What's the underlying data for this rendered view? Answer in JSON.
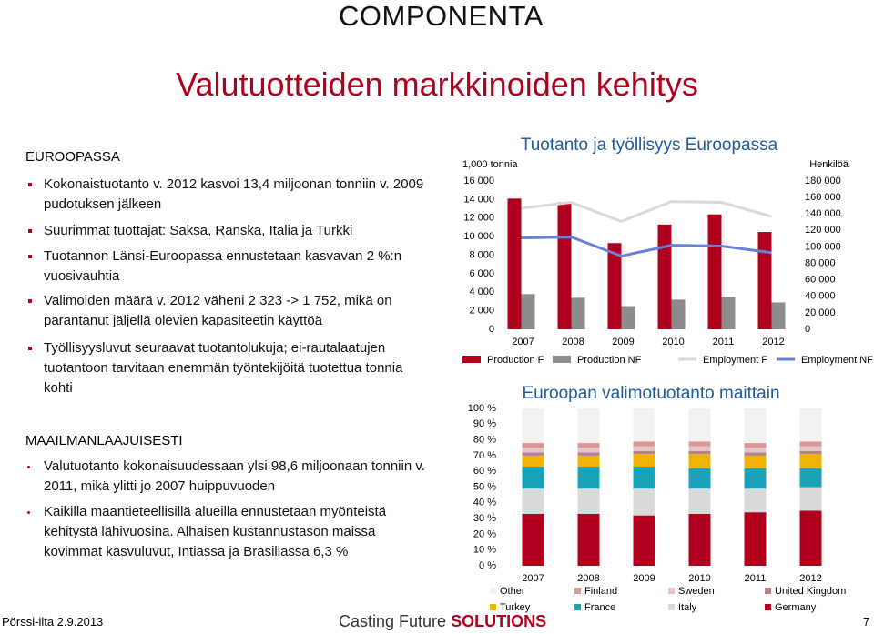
{
  "header": {
    "logo": "COMPONENTA",
    "title": "Valutuotteiden markkinoiden kehitys"
  },
  "sections": [
    {
      "heading": "EUROOPASSA",
      "bullets": [
        "Kokonaistuotanto  v. 2012 kasvoi 13,4 miljoonan tonniin v. 2009 pudotuksen jälkeen",
        "Suurimmat tuottajat: Saksa, Ranska, Italia ja Turkki",
        "Tuotannon Länsi-Euroopassa ennustetaan kasvavan 2 %:n vuosivauhtia",
        "Valimoiden määrä  v. 2012 väheni 2 323 -> 1 752, mikä on parantanut jäljellä olevien kapasiteetin käyttöä",
        "Työllisyysluvut seuraavat tuotantolukuja; ei-rautalaatujen tuotantoon tarvitaan enemmän työntekijöitä tuotettua tonnia kohti"
      ]
    },
    {
      "heading": "MAAILMANLAAJUISESTI",
      "bullets": [
        "Valutuotanto kokonaisuudessaan ylsi 98,6 miljoonaan tonniin v. 2011, mikä ylitti jo 2007 huippuvuoden",
        "Kaikilla maantieteellisillä alueilla ennustetaan myönteistä kehitystä lähivuosina. Alhaisen kustannustason maissa kovimmat kasvuluvut, Intiassa ja Brasiliassa 6,3 %"
      ]
    }
  ],
  "footer": {
    "event": "Pörssi-ilta 2.9.2013",
    "brand": "Casting Future",
    "brand_bold": "SOLUTIONS",
    "page": "7"
  },
  "chart_data": [
    {
      "type": "bar",
      "title": "Tuotanto ja työllisyys Euroopassa",
      "ylabel": "1,000 tonnia",
      "y2label": "Henkilöä",
      "categories": [
        "2007",
        "2008",
        "2009",
        "2010",
        "2011",
        "2012"
      ],
      "series": [
        {
          "name": "Production F",
          "color": "#b0001e",
          "values": [
            14100,
            13700,
            9300,
            11300,
            12400,
            10500
          ]
        },
        {
          "name": "Production NF",
          "color": "#8c8c8c",
          "values": [
            3800,
            3400,
            2500,
            3200,
            3500,
            2900
          ]
        },
        {
          "name": "Employment F",
          "type": "line",
          "axis": "y2",
          "color": "#d9d9d9",
          "values": [
            147000,
            154000,
            131000,
            155000,
            154000,
            137000
          ]
        },
        {
          "name": "Employment NF",
          "type": "line",
          "axis": "y2",
          "color": "#6a7fd6",
          "values": [
            111000,
            112000,
            89000,
            102000,
            101000,
            93000
          ]
        }
      ],
      "ylim": [
        0,
        16000
      ],
      "yticks": [
        0,
        {
          "value": 2000,
          "label": "2 000"
        },
        {
          "value": 4000,
          "label": "4 000"
        },
        {
          "value": 6000,
          "label": "6 000"
        },
        {
          "value": 8000,
          "label": "8 000"
        },
        {
          "value": 10000,
          "label": "10 000"
        },
        {
          "value": 12000,
          "label": "12 000"
        },
        {
          "value": 14000,
          "label": "14 000"
        },
        {
          "value": 16000,
          "label": "16 000"
        }
      ],
      "y2lim": [
        0,
        180000
      ],
      "y2ticks": [
        0,
        {
          "value": 20000,
          "label": "20 000"
        },
        {
          "value": 40000,
          "label": "40 000"
        },
        {
          "value": 60000,
          "label": "60 000"
        },
        {
          "value": 80000,
          "label": "80 000"
        },
        {
          "value": 100000,
          "label": "100 000"
        },
        {
          "value": 120000,
          "label": "120 000"
        },
        {
          "value": 140000,
          "label": "140 000"
        },
        {
          "value": 160000,
          "label": "160 000"
        },
        {
          "value": 180000,
          "label": "180 000"
        }
      ]
    },
    {
      "type": "stackedbar",
      "title": "Euroopan valimotuotanto maittain",
      "categories": [
        "2007",
        "2008",
        "2009",
        "2010",
        "2011",
        "2012"
      ],
      "series": [
        {
          "name": "Other",
          "color": "#f2f2f2",
          "values": [
            22,
            22,
            21,
            21,
            22,
            21
          ]
        },
        {
          "name": "Finland",
          "color": "#d99694",
          "values": [
            3,
            3,
            3,
            3,
            3,
            3
          ]
        },
        {
          "name": "Sweden",
          "color": "#e6c4c4",
          "values": [
            3,
            3,
            3,
            3,
            3,
            3
          ]
        },
        {
          "name": "United Kingdom",
          "color": "#b5838a",
          "values": [
            2,
            2,
            2,
            2,
            2,
            2
          ]
        },
        {
          "name": "Turkey",
          "color": "#f0b400",
          "values": [
            7,
            7,
            8,
            9,
            8,
            9
          ]
        },
        {
          "name": "France",
          "color": "#1aa3b8",
          "values": [
            14,
            14,
            14,
            13,
            13,
            12
          ]
        },
        {
          "name": "Italy",
          "color": "#d9d9d9",
          "values": [
            16,
            16,
            17,
            16,
            15,
            15
          ]
        },
        {
          "name": "Germany",
          "color": "#b0001e",
          "values": [
            33,
            33,
            32,
            33,
            34,
            35
          ]
        }
      ],
      "ylim": [
        0,
        100
      ],
      "yticks": [
        {
          "value": 0,
          "label": "0 %"
        },
        {
          "value": 10,
          "label": "10 %"
        },
        {
          "value": 20,
          "label": "20 %"
        },
        {
          "value": 30,
          "label": "30 %"
        },
        {
          "value": 40,
          "label": "40 %"
        },
        {
          "value": 50,
          "label": "50 %"
        },
        {
          "value": 60,
          "label": "60 %"
        },
        {
          "value": 70,
          "label": "70 %"
        },
        {
          "value": 80,
          "label": "80 %"
        },
        {
          "value": 90,
          "label": "90 %"
        },
        {
          "value": 100,
          "label": "100 %"
        }
      ]
    }
  ]
}
